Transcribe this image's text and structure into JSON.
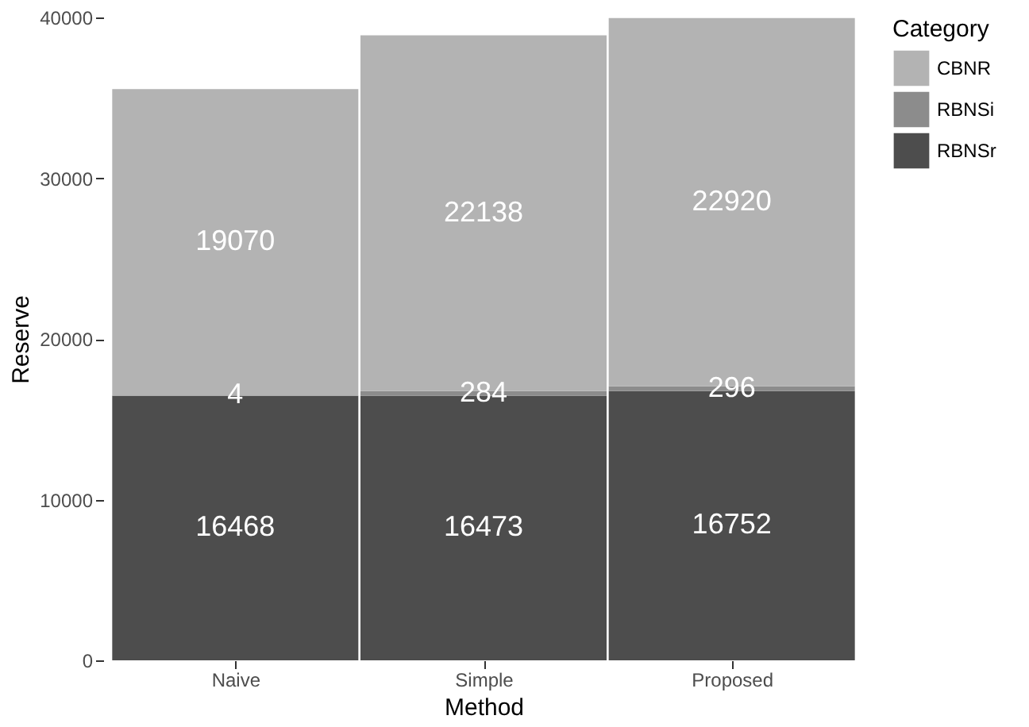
{
  "chart_data": {
    "type": "bar",
    "stacked": true,
    "xlabel": "Method",
    "ylabel": "Reserve",
    "legend_title": "Category",
    "legend": "right",
    "grid": false,
    "data_labels": true,
    "categories": [
      "Naive",
      "Simple",
      "Proposed"
    ],
    "series": [
      {
        "name": "RBNSr",
        "color": "#4d4d4d",
        "values": [
          16468,
          16473,
          16752
        ]
      },
      {
        "name": "RBNSi",
        "color": "#8c8c8c",
        "values": [
          4,
          284,
          296
        ]
      },
      {
        "name": "CBNR",
        "color": "#b3b3b3",
        "values": [
          19070,
          22138,
          22920
        ]
      }
    ],
    "ylim": [
      0,
      40000
    ],
    "yticks": [
      0,
      10000,
      20000,
      30000,
      40000
    ]
  }
}
